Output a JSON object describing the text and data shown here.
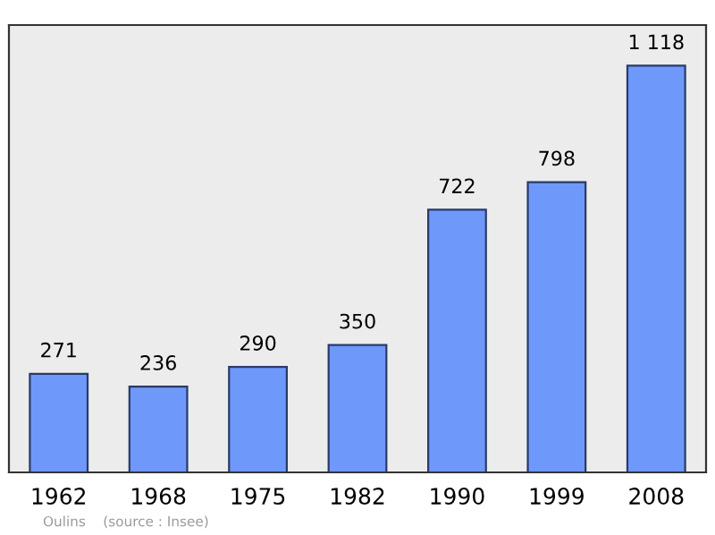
{
  "chart_data": {
    "type": "bar",
    "categories": [
      "1962",
      "1968",
      "1975",
      "1982",
      "1990",
      "1999",
      "2008"
    ],
    "values": [
      271,
      236,
      290,
      350,
      722,
      798,
      1118
    ],
    "value_labels": [
      "271",
      "236",
      "290",
      "350",
      "722",
      "798",
      "1 118"
    ],
    "color": "#6f98fb",
    "grid": false,
    "annotations": [
      "Oulins    (source : Insee)"
    ]
  }
}
